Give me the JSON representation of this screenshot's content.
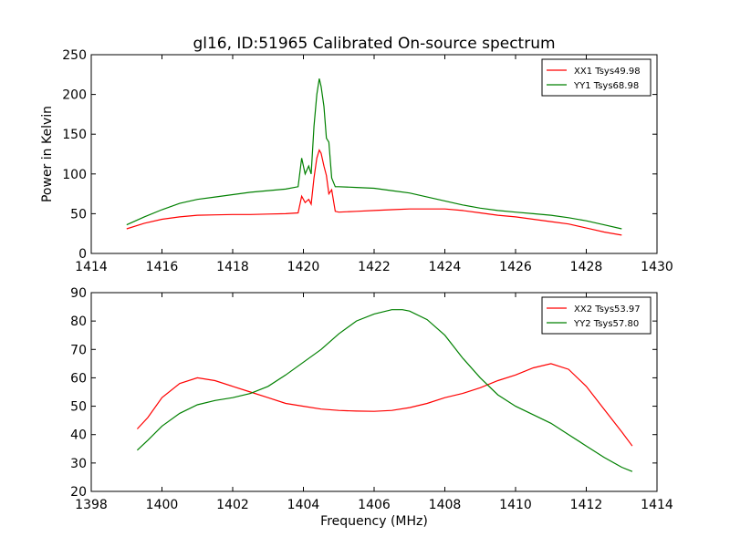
{
  "chart_data": [
    {
      "type": "line",
      "title": "gl16, ID:51965 Calibrated On-source spectrum",
      "xlabel": "",
      "ylabel": "Power in Kelvin",
      "xlim": [
        1414,
        1430
      ],
      "ylim": [
        0,
        250
      ],
      "xticks": [
        1414,
        1416,
        1418,
        1420,
        1422,
        1424,
        1426,
        1428,
        1430
      ],
      "yticks": [
        0,
        50,
        100,
        150,
        200,
        250
      ],
      "grid": false,
      "legend_position": "top-right",
      "series": [
        {
          "name": "XX1 Tsys49.98",
          "color": "#ff0000",
          "x": [
            1415.0,
            1415.5,
            1416.0,
            1416.5,
            1417.0,
            1417.5,
            1418.0,
            1418.5,
            1419.0,
            1419.5,
            1419.85,
            1419.95,
            1420.05,
            1420.15,
            1420.22,
            1420.3,
            1420.38,
            1420.45,
            1420.5,
            1420.58,
            1420.65,
            1420.72,
            1420.8,
            1420.9,
            1421.0,
            1421.5,
            1422.0,
            1422.5,
            1423.0,
            1423.5,
            1424.0,
            1424.5,
            1425.0,
            1425.5,
            1426.0,
            1426.5,
            1427.0,
            1427.5,
            1428.0,
            1428.5,
            1429.0
          ],
          "values": [
            31,
            38,
            43,
            46,
            48,
            48.5,
            49,
            49,
            49.5,
            50,
            51,
            72,
            64,
            68,
            62,
            95,
            120,
            130,
            126,
            110,
            98,
            75,
            80,
            53,
            52,
            53,
            54,
            55,
            56,
            56,
            56,
            54,
            51,
            48,
            46,
            43,
            40,
            37,
            32,
            27,
            23
          ]
        },
        {
          "name": "YY1 Tsys68.98",
          "color": "#008000",
          "x": [
            1415.0,
            1415.5,
            1416.0,
            1416.5,
            1417.0,
            1417.5,
            1418.0,
            1418.5,
            1419.0,
            1419.5,
            1419.85,
            1419.95,
            1420.05,
            1420.15,
            1420.22,
            1420.3,
            1420.38,
            1420.45,
            1420.5,
            1420.58,
            1420.65,
            1420.72,
            1420.8,
            1420.9,
            1421.0,
            1421.5,
            1422.0,
            1422.5,
            1423.0,
            1423.5,
            1424.0,
            1424.5,
            1425.0,
            1425.5,
            1426.0,
            1426.5,
            1427.0,
            1427.5,
            1428.0,
            1428.5,
            1429.0
          ],
          "values": [
            36,
            46,
            55,
            63,
            68,
            71,
            74,
            77,
            79,
            81,
            84,
            120,
            100,
            110,
            100,
            160,
            200,
            220,
            210,
            185,
            145,
            140,
            95,
            84,
            84,
            83,
            82,
            79,
            76,
            71,
            66,
            61,
            57,
            54,
            52,
            50,
            48,
            45,
            41,
            36,
            31
          ]
        }
      ]
    },
    {
      "type": "line",
      "title": "",
      "xlabel": "Frequency (MHz)",
      "ylabel": "",
      "xlim": [
        1398,
        1414
      ],
      "ylim": [
        20,
        90
      ],
      "xticks": [
        1398,
        1400,
        1402,
        1404,
        1406,
        1408,
        1410,
        1412,
        1414
      ],
      "yticks": [
        20,
        30,
        40,
        50,
        60,
        70,
        80,
        90
      ],
      "grid": false,
      "legend_position": "top-right",
      "series": [
        {
          "name": "XX2 Tsys53.97",
          "color": "#ff0000",
          "x": [
            1399.3,
            1399.6,
            1400.0,
            1400.5,
            1401.0,
            1401.5,
            1402.0,
            1402.5,
            1403.0,
            1403.5,
            1404.0,
            1404.5,
            1405.0,
            1405.5,
            1406.0,
            1406.5,
            1407.0,
            1407.5,
            1408.0,
            1408.5,
            1409.0,
            1409.5,
            1410.0,
            1410.5,
            1411.0,
            1411.5,
            1412.0,
            1412.5,
            1413.0,
            1413.3
          ],
          "values": [
            42,
            46,
            53,
            58,
            60,
            59,
            57,
            55,
            53,
            51,
            50,
            49,
            48.5,
            48.3,
            48.2,
            48.5,
            49.5,
            51,
            53,
            54.5,
            56.5,
            59,
            61,
            63.5,
            65,
            63,
            57,
            49,
            41,
            36
          ]
        },
        {
          "name": "YY2 Tsys57.80",
          "color": "#008000",
          "x": [
            1399.3,
            1399.6,
            1400.0,
            1400.5,
            1401.0,
            1401.5,
            1402.0,
            1402.5,
            1403.0,
            1403.5,
            1404.0,
            1404.5,
            1405.0,
            1405.5,
            1406.0,
            1406.5,
            1406.8,
            1407.0,
            1407.5,
            1408.0,
            1408.5,
            1409.0,
            1409.5,
            1410.0,
            1410.5,
            1411.0,
            1411.5,
            1412.0,
            1412.5,
            1413.0,
            1413.3
          ],
          "values": [
            34.5,
            38,
            43,
            47.5,
            50.5,
            52,
            53,
            54.5,
            57,
            61,
            65.5,
            70,
            75.5,
            80,
            82.5,
            84,
            84,
            83.5,
            80.5,
            75,
            67,
            60,
            54,
            50,
            47,
            44,
            40,
            36,
            32,
            28.5,
            27
          ]
        }
      ]
    }
  ]
}
